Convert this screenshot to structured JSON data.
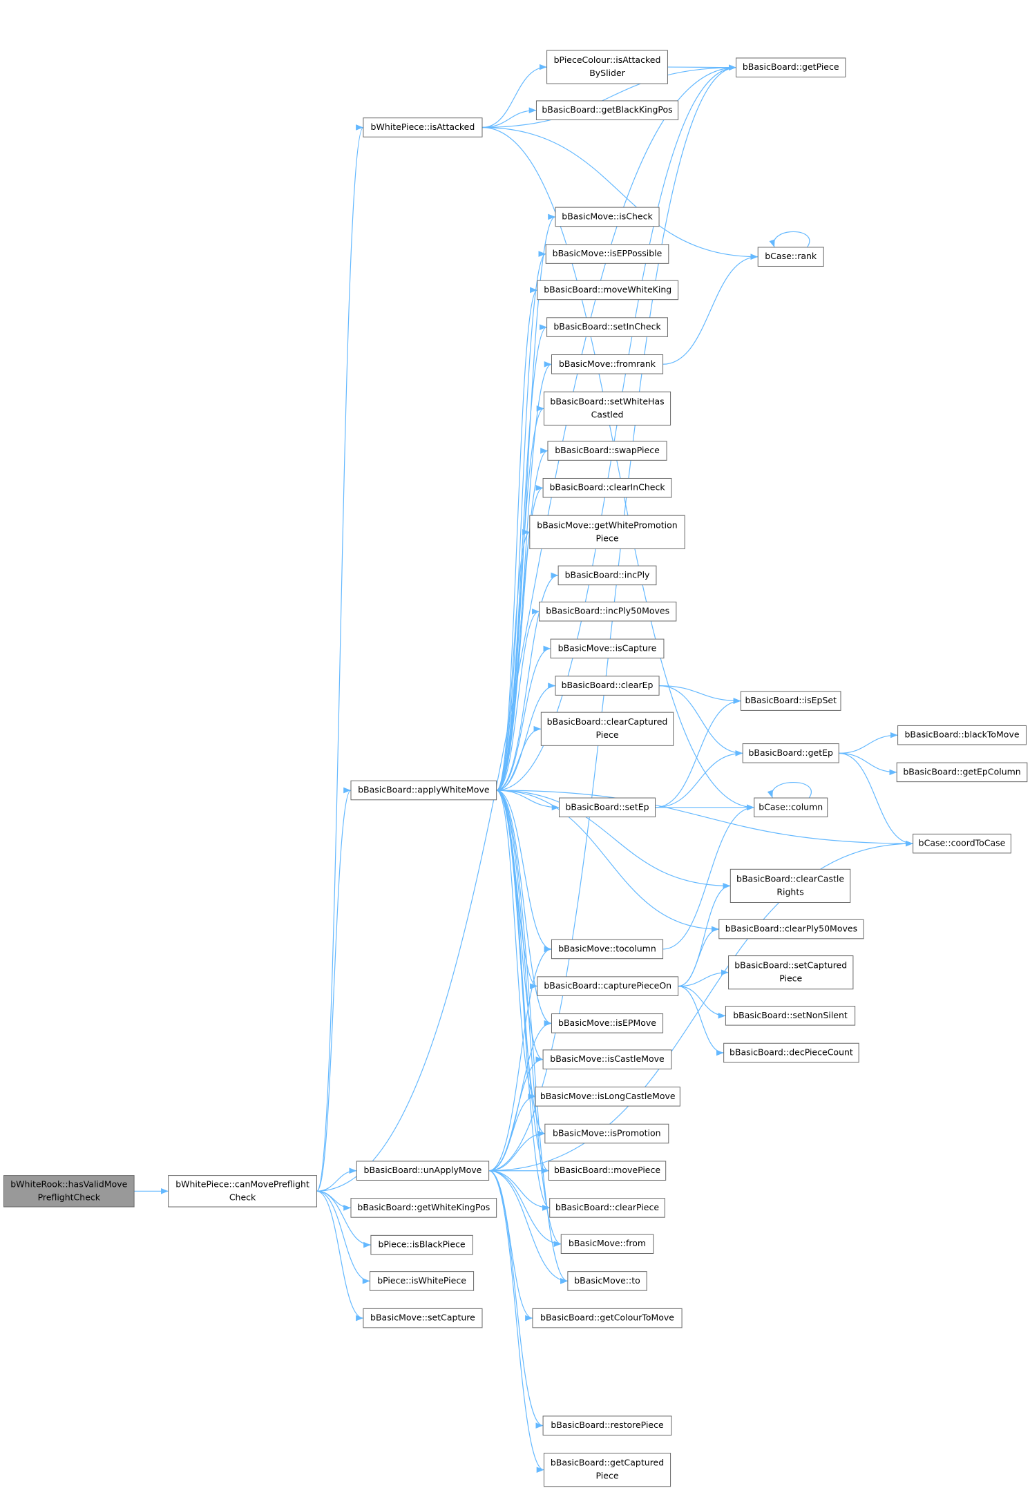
{
  "nodes": [
    {
      "lines": [
        "bWhiteRook::hasValidMove",
        "PreflightCheck"
      ]
    },
    {
      "lines": [
        "bWhitePiece::canMovePreflight",
        "Check"
      ]
    },
    {
      "lines": [
        "bWhitePiece::isAttacked"
      ]
    },
    {
      "lines": [
        "bPieceColour::isAttacked",
        "BySlider"
      ]
    },
    {
      "lines": [
        "bBasicBoard::getPiece"
      ]
    },
    {
      "lines": [
        "bBasicBoard::getBlackKingPos"
      ]
    },
    {
      "lines": [
        "bCase::rank"
      ]
    },
    {
      "lines": [
        "bBasicMove::isCheck"
      ]
    },
    {
      "lines": [
        "bBasicMove::isEPPossible"
      ]
    },
    {
      "lines": [
        "bBasicBoard::moveWhiteKing"
      ]
    },
    {
      "lines": [
        "bBasicBoard::setInCheck"
      ]
    },
    {
      "lines": [
        "bBasicMove::fromrank"
      ]
    },
    {
      "lines": [
        "bBasicBoard::setWhiteHas",
        "Castled"
      ]
    },
    {
      "lines": [
        "bBasicBoard::swapPiece"
      ]
    },
    {
      "lines": [
        "bBasicBoard::clearInCheck"
      ]
    },
    {
      "lines": [
        "bBasicMove::getWhitePromotion",
        "Piece"
      ]
    },
    {
      "lines": [
        "bBasicBoard::incPly"
      ]
    },
    {
      "lines": [
        "bBasicBoard::incPly50Moves"
      ]
    },
    {
      "lines": [
        "bBasicMove::isCapture"
      ]
    },
    {
      "lines": [
        "bBasicBoard::clearEp"
      ]
    },
    {
      "lines": [
        "bBasicBoard::clearCaptured",
        "Piece"
      ]
    },
    {
      "lines": [
        "bBasicBoard::applyWhiteMove"
      ]
    },
    {
      "lines": [
        "bBasicBoard::setEp"
      ]
    },
    {
      "lines": [
        "bBasicBoard::isEpSet"
      ]
    },
    {
      "lines": [
        "bBasicBoard::getEp"
      ]
    },
    {
      "lines": [
        "bBasicBoard::blackToMove"
      ]
    },
    {
      "lines": [
        "bBasicBoard::getEpColumn"
      ]
    },
    {
      "lines": [
        "bCase::column"
      ]
    },
    {
      "lines": [
        "bCase::coordToCase"
      ]
    },
    {
      "lines": [
        "bBasicBoard::clearCastle",
        "Rights"
      ]
    },
    {
      "lines": [
        "bBasicBoard::clearPly50Moves"
      ]
    },
    {
      "lines": [
        "bBasicMove::tocolumn"
      ]
    },
    {
      "lines": [
        "bBasicBoard::capturePieceOn"
      ]
    },
    {
      "lines": [
        "bBasicBoard::setCaptured",
        "Piece"
      ]
    },
    {
      "lines": [
        "bBasicBoard::setNonSilent"
      ]
    },
    {
      "lines": [
        "bBasicBoard::decPieceCount"
      ]
    },
    {
      "lines": [
        "bBasicMove::isEPMove"
      ]
    },
    {
      "lines": [
        "bBasicMove::isCastleMove"
      ]
    },
    {
      "lines": [
        "bBasicMove::isLongCastleMove"
      ]
    },
    {
      "lines": [
        "bBasicMove::isPromotion"
      ]
    },
    {
      "lines": [
        "bBasicBoard::unApplyMove"
      ]
    },
    {
      "lines": [
        "bBasicBoard::movePiece"
      ]
    },
    {
      "lines": [
        "bBasicBoard::clearPiece"
      ]
    },
    {
      "lines": [
        "bBasicBoard::getWhiteKingPos"
      ]
    },
    {
      "lines": [
        "bPiece::isBlackPiece"
      ]
    },
    {
      "lines": [
        "bBasicMove::from"
      ]
    },
    {
      "lines": [
        "bPiece::isWhitePiece"
      ]
    },
    {
      "lines": [
        "bBasicMove::to"
      ]
    },
    {
      "lines": [
        "bBasicMove::setCapture"
      ]
    },
    {
      "lines": [
        "bBasicBoard::getColourToMove"
      ]
    },
    {
      "lines": [
        "bBasicBoard::restorePiece"
      ]
    },
    {
      "lines": [
        "bBasicBoard::getCaptured",
        "Piece"
      ]
    }
  ]
}
